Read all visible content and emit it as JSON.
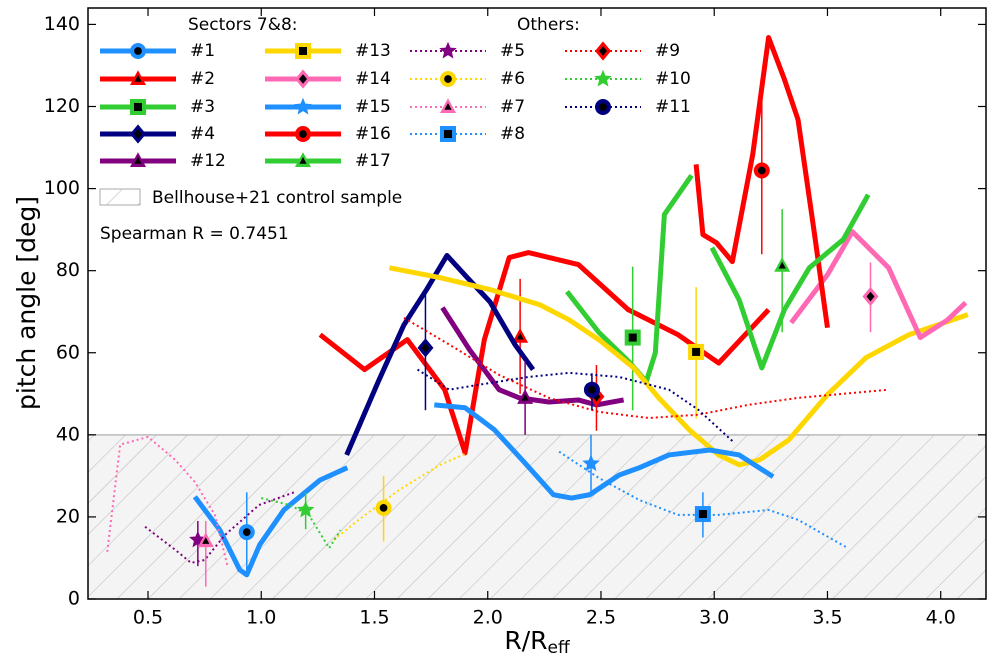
{
  "chart_data": {
    "type": "line",
    "ylabel": "pitch angle [deg]",
    "xlabel": "R/R",
    "xlabel_sub": "eff",
    "xlim": [
      0.235,
      4.2
    ],
    "ylim": [
      0,
      144
    ],
    "xticks": [
      0.5,
      {
        "value": 1.0,
        "label": "1.0"
      },
      1.5,
      {
        "value": 2.0,
        "label": "2.0"
      },
      2.5,
      {
        "value": 3.0,
        "label": "3.0"
      },
      3.5,
      {
        "value": 4.0,
        "label": "4.0"
      }
    ],
    "yticks": [
      0,
      20,
      40,
      60,
      80,
      100,
      120,
      140
    ],
    "band": {
      "label": "Bellhouse+21 control sample",
      "ylim": [
        0,
        40
      ],
      "color": "#f4f4f4"
    },
    "annotation": "Spearman R = 0.7451",
    "groups": [
      {
        "title": "Sectors 7&8:",
        "series": [
          {
            "name": "#1",
            "color": "#1e90ff",
            "style": "solid",
            "marker": "circle",
            "x": [
              0.707,
              0.817,
              0.905,
              0.936,
              0.993,
              1.1,
              1.26,
              1.38
            ],
            "values": [
              24.9,
              16.8,
              7.1,
              5.9,
              13.2,
              21.7,
              29,
              32
            ],
            "point": {
              "x": 0.936,
              "y": 16.3,
              "lo": 6,
              "hi": 26
            }
          },
          {
            "name": "#2",
            "color": "#ff0000",
            "style": "solid",
            "marker": "triangle",
            "x": [
              1.26,
              1.456,
              1.645,
              1.81,
              1.9,
              1.985,
              2.095,
              2.18,
              2.4,
              2.62,
              2.84,
              3.02,
              3.24
            ],
            "values": [
              64.4,
              55.9,
              63.2,
              51,
              35.6,
              63.2,
              83.2,
              84.4,
              81.5,
              70.5,
              64.4,
              57.5,
              70.5
            ],
            "point": {
              "x": 2.143,
              "y": 63.9,
              "lo": 50,
              "hi": 78
            }
          },
          {
            "name": "#3",
            "color": "#32cd32",
            "style": "solid",
            "marker": "square",
            "x": [
              2.35,
              2.49,
              2.62,
              2.7,
              2.74,
              2.78,
              2.9
            ],
            "values": [
              74.9,
              65,
              58,
              53,
              60,
              93.7,
              103.2
            ],
            "point": {
              "x": 2.64,
              "y": 63.7,
              "lo": 46,
              "hi": 81
            }
          },
          {
            "name": "#4",
            "color": "#000080",
            "style": "solid",
            "marker": "diamond",
            "x": [
              1.377,
              1.52,
              1.63,
              1.73,
              1.82,
              1.91,
              2.01,
              2.12,
              2.2
            ],
            "values": [
              35.1,
              53.4,
              66.8,
              75.4,
              83.7,
              78.3,
              72.4,
              62,
              55.9
            ],
            "point": {
              "x": 1.725,
              "y": 61.2,
              "lo": 46,
              "hi": 75
            }
          },
          {
            "name": "#12",
            "color": "#800080",
            "style": "solid",
            "marker": "triangle",
            "x": [
              1.8,
              1.92,
              2.05,
              2.14,
              2.27,
              2.4,
              2.48,
              2.6
            ],
            "values": [
              71,
              60.7,
              51,
              49,
              48,
              48.5,
              47.3,
              48.5
            ],
            "point": {
              "x": 2.165,
              "y": 49,
              "lo": 40,
              "hi": 58
            }
          },
          {
            "name": "#13",
            "color": "#ffd700",
            "style": "solid",
            "marker": "square",
            "x": [
              1.566,
              1.79,
              2.01,
              2.23,
              2.36,
              2.49,
              2.645,
              2.755,
              2.89,
              3.02,
              3.11,
              3.2,
              3.33,
              3.5,
              3.67,
              3.86,
              4.12
            ],
            "values": [
              80.7,
              78.3,
              75.4,
              71.7,
              68,
              63.2,
              56.3,
              49,
              41.2,
              35.1,
              32.7,
              33.9,
              38.8,
              49.8,
              58.8,
              64.4,
              69.3
            ],
            "point": {
              "x": 2.92,
              "y": 60.2,
              "lo": 44,
              "hi": 76
            }
          },
          {
            "name": "#14",
            "color": "#ff69b4",
            "style": "solid",
            "marker": "diamond",
            "x": [
              3.34,
              3.5,
              3.61,
              3.77,
              3.91,
              4.03,
              4.11
            ],
            "values": [
              67.3,
              79,
              89.5,
              80.7,
              63.7,
              68,
              72.2
            ],
            "point": {
              "x": 3.69,
              "y": 73.7,
              "lo": 65,
              "hi": 82
            }
          },
          {
            "name": "#15",
            "color": "#1e90ff",
            "style": "solid",
            "marker": "star",
            "x": [
              1.764,
              1.9,
              2.03,
              2.16,
              2.29,
              2.37,
              2.45,
              2.58,
              2.67,
              2.8,
              2.98,
              3.11,
              3.26
            ],
            "values": [
              47.3,
              46.6,
              41.2,
              33.4,
              25.4,
              24.6,
              25.4,
              30.2,
              32,
              35.1,
              36.3,
              35.1,
              29.8
            ],
            "point": {
              "x": 2.456,
              "y": 33,
              "lo": 26,
              "hi": 40
            }
          },
          {
            "name": "#16",
            "color": "#ff0000",
            "style": "solid",
            "marker": "circle",
            "x": [
              2.92,
              2.95,
              3.01,
              3.08,
              3.17,
              3.24,
              3.31,
              3.37,
              3.44,
              3.5
            ],
            "values": [
              105.9,
              88.8,
              86.8,
              82.2,
              108.3,
              136.8,
              126.6,
              116.8,
              90,
              66.1
            ],
            "point": {
              "x": 3.21,
              "y": 104.4,
              "lo": 84,
              "hi": 124
            }
          },
          {
            "name": "#17",
            "color": "#32cd32",
            "style": "solid",
            "marker": "triangle",
            "x": [
              2.99,
              3.11,
              3.21,
              3.31,
              3.42,
              3.57,
              3.68
            ],
            "values": [
              85.6,
              72.9,
              56.3,
              70.5,
              80.7,
              87.6,
              98.5
            ],
            "point": {
              "x": 3.3,
              "y": 81.2,
              "lo": 65,
              "hi": 95
            }
          }
        ]
      },
      {
        "title": "Others:",
        "series": [
          {
            "name": "#5",
            "color": "#800080",
            "style": "dotted",
            "marker": "star",
            "x": [
              0.487,
              0.62,
              0.69,
              0.75,
              0.84,
              0.99,
              1.15
            ],
            "values": [
              17.6,
              12,
              8.8,
              9.5,
              15.6,
              22.9,
              26.1
            ],
            "point": {
              "x": 0.72,
              "y": 14.4,
              "lo": 8,
              "hi": 19
            }
          },
          {
            "name": "#6",
            "color": "#ffd700",
            "style": "dotted",
            "marker": "circle",
            "x": [
              1.32,
              1.43,
              1.61,
              1.79,
              1.91
            ],
            "values": [
              14.4,
              19.3,
              26.6,
              32.7,
              35.6
            ],
            "point": {
              "x": 1.54,
              "y": 22.2,
              "lo": 14,
              "hi": 30
            }
          },
          {
            "name": "#7",
            "color": "#ff69b4",
            "style": "dotted",
            "marker": "triangle",
            "x": [
              0.32,
              0.377,
              0.5,
              0.62,
              0.707,
              0.795,
              0.85
            ],
            "values": [
              11.5,
              37.6,
              39.5,
              33.9,
              28.5,
              20.5,
              8.3
            ],
            "point": {
              "x": 0.755,
              "y": 14.1,
              "lo": 3,
              "hi": 19
            }
          },
          {
            "name": "#8",
            "color": "#1e90ff",
            "style": "dotted",
            "marker": "square",
            "x": [
              2.315,
              2.49,
              2.67,
              2.84,
              3.02,
              3.24,
              3.37,
              3.59
            ],
            "values": [
              35.9,
              29.5,
              24.1,
              20.5,
              20.5,
              21.7,
              19.3,
              12.4
            ],
            "point": {
              "x": 2.95,
              "y": 20.7,
              "lo": 15,
              "hi": 26
            }
          },
          {
            "name": "#9",
            "color": "#ff0000",
            "style": "dotted",
            "marker": "diamond",
            "x": [
              1.63,
              1.83,
              2.05,
              2.27,
              2.49,
              2.71,
              2.93,
              3.15,
              3.37,
              3.77
            ],
            "values": [
              68.5,
              62,
              54.6,
              49,
              45.6,
              44.1,
              44.9,
              47.3,
              49,
              51
            ],
            "point": {
              "x": 2.48,
              "y": 49.3,
              "lo": 41,
              "hi": 57
            }
          },
          {
            "name": "#10",
            "color": "#32cd32",
            "style": "dotted",
            "marker": "star",
            "x": [
              1.0,
              1.125,
              1.21,
              1.3,
              1.35
            ],
            "values": [
              24.6,
              22.9,
              20.5,
              12.4,
              16.8
            ],
            "point": {
              "x": 1.196,
              "y": 21.7,
              "lo": 17,
              "hi": 26
            }
          },
          {
            "name": "#11",
            "color": "#000080",
            "style": "dotted",
            "marker": "circle",
            "x": [
              1.69,
              1.83,
              1.96,
              2.18,
              2.36,
              2.58,
              2.8,
              2.93,
              3.09
            ],
            "values": [
              55.9,
              51,
              52.2,
              54.1,
              55.1,
              54.1,
              51,
              46.1,
              38
            ],
            "point": {
              "x": 2.46,
              "y": 51,
              "lo": 46,
              "hi": 55
            }
          }
        ]
      }
    ]
  }
}
